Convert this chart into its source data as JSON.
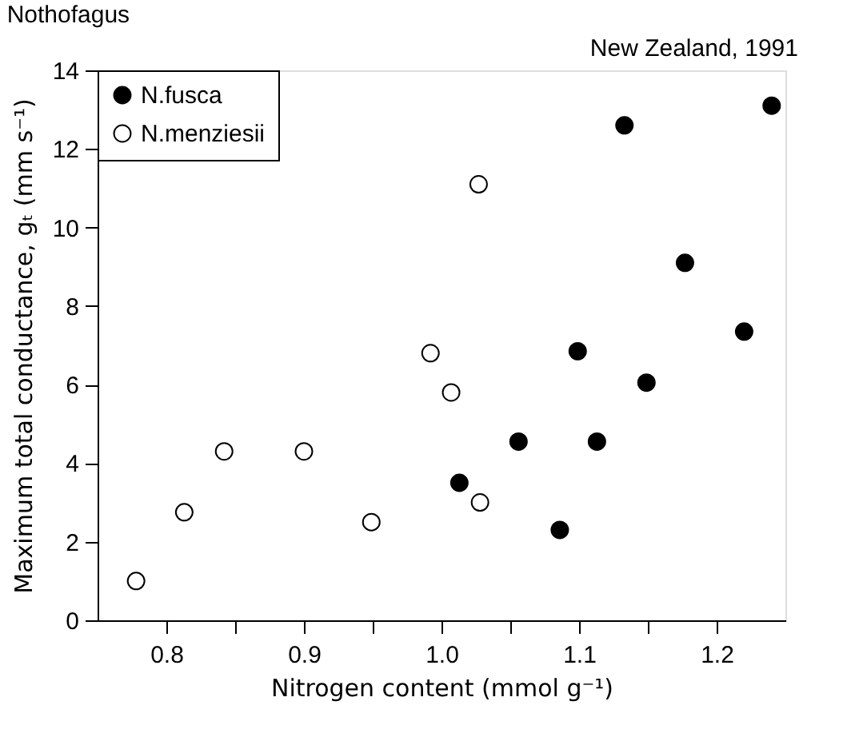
{
  "chart_data": {
    "type": "scatter",
    "title": "Nothofagus",
    "annotations": [
      "New Zealand, 1991"
    ],
    "xlabel": "Nitrogen content (mmol g⁻¹)",
    "ylabel": "Maximum total conductance, gₜ (mm s⁻¹)",
    "series": [
      {
        "name": "N.fusca",
        "color": "#000000",
        "x": [
          1.013,
          1.056,
          1.086,
          1.113,
          1.099,
          1.149,
          1.133,
          1.177,
          1.22,
          1.24
        ],
        "values": [
          3.5,
          4.55,
          2.3,
          4.55,
          6.85,
          6.05,
          12.6,
          9.1,
          7.35,
          13.1
        ]
      },
      {
        "name": "N.menziesii",
        "color": "#ffffff",
        "x": [
          0.778,
          0.813,
          0.842,
          0.9,
          0.949,
          0.992,
          1.007,
          1.028,
          1.027
        ],
        "values": [
          1.0,
          2.75,
          4.3,
          4.3,
          2.5,
          6.8,
          5.8,
          3.0,
          11.1
        ]
      }
    ],
    "xlim": [
      0.75,
      1.25
    ],
    "xticks": [
      0.8,
      {
        "value": 0.85,
        "label": null
      },
      0.9,
      {
        "value": 0.95,
        "label": null
      },
      {
        "value": 1.0,
        "label": "1.0"
      },
      {
        "value": 1.05,
        "label": null
      },
      1.1,
      {
        "value": 1.15,
        "label": null
      },
      1.2
    ],
    "ylim": [
      0,
      14
    ],
    "yticks": [
      0,
      2,
      4,
      6,
      8,
      10,
      12,
      14
    ],
    "marker": "circle",
    "legend": "top left",
    "grid": false
  }
}
